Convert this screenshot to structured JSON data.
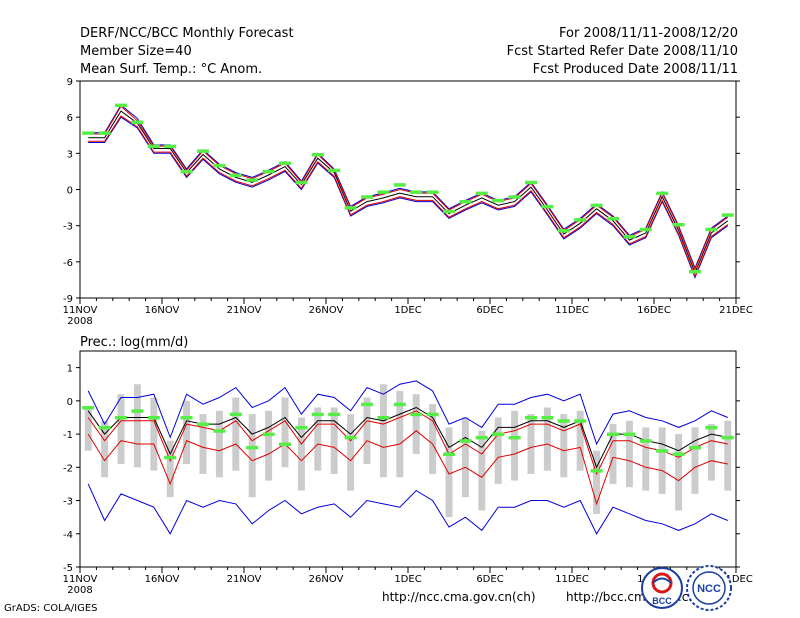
{
  "header": {
    "title": "DERF/NCC/BCC Monthly Forecast",
    "member": "Member Size=40",
    "variable": "Mean Surf. Temp.: °C Anom.",
    "period": "For 2008/11/11-2008/12/20",
    "start": "Fcst Started Refer Date 2008/11/10",
    "produced": "Fcst Produced Date 2008/11/11"
  },
  "footer": {
    "grads": "GrADS: COLA/IGES",
    "url1": "http://ncc.cma.gov.cn(ch)",
    "url2": "http://bcc.cma.gov.cn",
    "logo1": "BCC",
    "logo2": "NCC"
  },
  "colors": {
    "mean": "#000000",
    "spread": "#e00000",
    "range": "#0000dd",
    "marker": "#55ee44",
    "bar": "#cccccc"
  },
  "chart_data": [
    {
      "type": "line",
      "title": "Mean Surf. Temp.: °C Anom.",
      "xlabel": "",
      "ylabel": "",
      "ylim": [
        -9,
        9
      ],
      "yticks": [
        9,
        6,
        3,
        0,
        -3,
        -6,
        -9
      ],
      "xticks": [
        {
          "day": 0,
          "label": "11NOV",
          "sub": "2008"
        },
        {
          "day": 5,
          "label": "16NOV"
        },
        {
          "day": 10,
          "label": "21NOV"
        },
        {
          "day": 15,
          "label": "26NOV"
        },
        {
          "day": 20,
          "label": "1DEC"
        },
        {
          "day": 25,
          "label": "6DEC"
        },
        {
          "day": 30,
          "label": "11DEC"
        },
        {
          "day": 35,
          "label": "16DEC"
        },
        {
          "day": 40,
          "label": "21DEC"
        }
      ],
      "mean": [
        4.3,
        4.3,
        6.5,
        5.5,
        3.4,
        3.4,
        1.4,
        2.9,
        1.7,
        1.0,
        0.6,
        1.2,
        1.9,
        0.4,
        2.6,
        1.4,
        -1.8,
        -1.0,
        -0.7,
        -0.3,
        -0.6,
        -0.6,
        -2.0,
        -1.3,
        -0.7,
        -1.3,
        -1.0,
        0.2,
        -1.7,
        -3.7,
        -2.8,
        -1.6,
        -2.6,
        -4.2,
        -3.6,
        -0.6,
        -3.4,
        -6.9,
        -3.6,
        -2.6
      ],
      "upper": [
        4.6,
        4.6,
        6.9,
        5.7,
        3.6,
        3.6,
        1.6,
        3.2,
        2.0,
        1.3,
        0.9,
        1.5,
        2.2,
        0.6,
        2.9,
        1.6,
        -1.5,
        -0.7,
        -0.4,
        0.0,
        -0.3,
        -0.3,
        -1.7,
        -1.0,
        -0.4,
        -1.0,
        -0.7,
        0.5,
        -1.4,
        -3.4,
        -2.5,
        -1.3,
        -2.3,
        -3.9,
        -3.3,
        -0.3,
        -3.1,
        -6.6,
        -3.3,
        -2.3
      ],
      "lower": [
        4.0,
        4.0,
        6.1,
        5.2,
        3.1,
        3.1,
        1.1,
        2.6,
        1.4,
        0.7,
        0.3,
        0.9,
        1.6,
        0.1,
        2.3,
        1.1,
        -2.1,
        -1.3,
        -1.0,
        -0.6,
        -0.9,
        -0.9,
        -2.3,
        -1.6,
        -1.0,
        -1.6,
        -1.3,
        -0.1,
        -2.0,
        -4.0,
        -3.1,
        -1.9,
        -2.9,
        -4.5,
        -3.9,
        -0.9,
        -3.7,
        -7.2,
        -3.9,
        -2.9
      ],
      "max": [
        4.7,
        4.7,
        7.0,
        5.9,
        3.7,
        3.7,
        1.7,
        3.3,
        2.1,
        1.4,
        1.0,
        1.6,
        2.3,
        0.7,
        3.0,
        1.7,
        -1.4,
        -0.6,
        -0.3,
        0.1,
        -0.2,
        -0.2,
        -1.6,
        -0.9,
        -0.3,
        -0.9,
        -0.6,
        0.6,
        -1.3,
        -3.3,
        -2.4,
        -1.2,
        -2.2,
        -3.8,
        -3.2,
        -0.2,
        -3.0,
        -6.5,
        -3.2,
        -2.2
      ],
      "min": [
        3.9,
        3.9,
        6.0,
        5.1,
        3.0,
        3.0,
        1.0,
        2.5,
        1.3,
        0.6,
        0.2,
        0.8,
        1.5,
        0.0,
        2.2,
        1.0,
        -2.2,
        -1.4,
        -1.1,
        -0.7,
        -1.0,
        -1.0,
        -2.4,
        -1.7,
        -1.1,
        -1.7,
        -1.4,
        -0.2,
        -2.1,
        -4.1,
        -3.2,
        -2.0,
        -3.0,
        -4.6,
        -4.0,
        -1.0,
        -3.8,
        -7.3,
        -4.0,
        -3.0
      ],
      "markers": [
        4.7,
        4.7,
        7.0,
        5.6,
        3.6,
        3.6,
        1.5,
        3.2,
        2.0,
        1.2,
        0.8,
        1.5,
        2.2,
        0.6,
        2.9,
        1.6,
        -1.5,
        -0.6,
        -0.2,
        0.4,
        -0.2,
        -0.2,
        -1.8,
        -1.0,
        -0.3,
        -0.9,
        -0.6,
        0.6,
        -1.4,
        -3.4,
        -2.5,
        -1.3,
        -2.4,
        -3.9,
        -3.3,
        -0.3,
        -2.9,
        -6.8,
        -3.3,
        -2.1
      ]
    },
    {
      "type": "line",
      "title": "Prec.: log(mm/d)",
      "xlabel": "",
      "ylabel": "",
      "ylim": [
        -5,
        1.5
      ],
      "yticks": [
        1,
        0,
        -1,
        -2,
        -3,
        -4,
        -5
      ],
      "xticks": [
        {
          "day": 0,
          "label": "11NOV",
          "sub": "2008"
        },
        {
          "day": 5,
          "label": "16NOV"
        },
        {
          "day": 10,
          "label": "21NOV"
        },
        {
          "day": 15,
          "label": "26NOV"
        },
        {
          "day": 20,
          "label": "1DEC"
        },
        {
          "day": 25,
          "label": "6DEC"
        },
        {
          "day": 30,
          "label": "11DEC"
        },
        {
          "day": 35,
          "label": "16DEC"
        },
        {
          "day": 40,
          "label": "21DEC"
        }
      ],
      "mean": [
        -0.3,
        -1.0,
        -0.5,
        -0.5,
        -0.5,
        -1.6,
        -0.6,
        -0.7,
        -0.7,
        -0.5,
        -1.0,
        -0.8,
        -0.5,
        -1.1,
        -0.6,
        -0.6,
        -1.0,
        -0.5,
        -0.6,
        -0.4,
        -0.2,
        -0.5,
        -1.4,
        -1.1,
        -1.4,
        -0.8,
        -0.8,
        -0.6,
        -0.6,
        -0.8,
        -0.6,
        -2.0,
        -1.0,
        -1.0,
        -1.2,
        -1.3,
        -1.5,
        -1.2,
        -1.0,
        -1.1
      ],
      "upper": [
        -0.5,
        -1.2,
        -0.6,
        -0.6,
        -0.6,
        -1.8,
        -0.7,
        -0.8,
        -0.9,
        -0.6,
        -1.2,
        -0.9,
        -0.6,
        -1.3,
        -0.7,
        -0.7,
        -1.2,
        -0.6,
        -0.7,
        -0.5,
        -0.3,
        -0.6,
        -1.6,
        -1.3,
        -1.6,
        -1.0,
        -0.9,
        -0.7,
        -0.7,
        -0.9,
        -0.7,
        -2.2,
        -1.2,
        -1.2,
        -1.4,
        -1.5,
        -1.7,
        -1.4,
        -1.2,
        -1.3
      ],
      "lower": [
        -1.0,
        -1.8,
        -1.2,
        -1.3,
        -1.3,
        -2.5,
        -1.2,
        -1.4,
        -1.5,
        -1.3,
        -1.8,
        -1.6,
        -1.3,
        -1.8,
        -1.3,
        -1.4,
        -1.8,
        -1.2,
        -1.4,
        -1.3,
        -0.9,
        -1.3,
        -2.2,
        -2.0,
        -2.3,
        -1.7,
        -1.6,
        -1.4,
        -1.3,
        -1.5,
        -1.4,
        -3.1,
        -1.7,
        -1.8,
        -2.0,
        -2.1,
        -2.4,
        -2.0,
        -1.8,
        -1.9
      ],
      "max": [
        0.3,
        -0.7,
        0.1,
        0.1,
        0.2,
        -1.1,
        0.2,
        -0.1,
        0.1,
        0.4,
        -0.2,
        0.0,
        0.4,
        -0.4,
        0.2,
        0.1,
        -0.3,
        0.4,
        0.2,
        0.5,
        0.6,
        0.3,
        -0.7,
        -0.5,
        -0.8,
        -0.1,
        -0.1,
        0.1,
        0.2,
        0.0,
        0.2,
        -1.3,
        -0.4,
        -0.3,
        -0.5,
        -0.6,
        -0.8,
        -0.6,
        -0.3,
        -0.5
      ],
      "min": [
        -2.5,
        -3.6,
        -2.8,
        -3.0,
        -3.2,
        -4.0,
        -3.0,
        -3.2,
        -3.0,
        -3.1,
        -3.7,
        -3.3,
        -3.0,
        -3.4,
        -3.2,
        -3.1,
        -3.5,
        -3.0,
        -3.1,
        -3.2,
        -2.7,
        -3.0,
        -3.8,
        -3.5,
        -3.9,
        -3.2,
        -3.2,
        -3.0,
        -3.0,
        -3.2,
        -3.0,
        -4.0,
        -3.2,
        -3.4,
        -3.6,
        -3.7,
        -3.9,
        -3.7,
        -3.4,
        -3.6
      ],
      "bar_top": [
        -0.2,
        -0.6,
        0.2,
        0.5,
        0.1,
        -1.2,
        0.0,
        -0.4,
        -0.3,
        0.1,
        -0.4,
        -0.3,
        0.1,
        -0.5,
        -0.2,
        -0.2,
        -0.4,
        0.1,
        0.5,
        0.3,
        0.2,
        -0.1,
        -0.8,
        -0.5,
        -0.9,
        -0.5,
        -0.3,
        -0.4,
        -0.2,
        -0.4,
        -0.3,
        -1.5,
        -0.7,
        -0.6,
        -0.8,
        -0.8,
        -1.0,
        -0.8,
        -0.7,
        -0.6
      ],
      "bar_bottom": [
        -1.5,
        -2.3,
        -1.9,
        -2.0,
        -2.1,
        -2.9,
        -1.9,
        -2.2,
        -2.3,
        -2.1,
        -2.9,
        -2.4,
        -2.0,
        -2.7,
        -2.1,
        -2.2,
        -2.7,
        -1.9,
        -2.3,
        -2.3,
        -1.6,
        -2.2,
        -3.5,
        -2.9,
        -3.3,
        -2.5,
        -2.4,
        -2.2,
        -2.1,
        -2.3,
        -2.1,
        -3.4,
        -2.5,
        -2.6,
        -2.7,
        -2.8,
        -3.3,
        -2.8,
        -2.4,
        -2.7
      ],
      "markers": [
        -0.2,
        -0.8,
        -0.5,
        -0.3,
        -0.5,
        -1.7,
        -0.5,
        -0.7,
        -0.9,
        -0.4,
        -1.4,
        -1.0,
        -1.3,
        -0.8,
        -0.4,
        -0.4,
        -1.1,
        -0.1,
        -0.5,
        -0.1,
        -0.4,
        -0.4,
        -1.6,
        -1.2,
        -1.1,
        -1.0,
        -1.1,
        -0.5,
        -0.5,
        -0.6,
        -0.6,
        -2.1,
        -1.0,
        -1.0,
        -1.2,
        -1.5,
        -1.6,
        -1.4,
        -0.8,
        -1.1
      ]
    }
  ]
}
